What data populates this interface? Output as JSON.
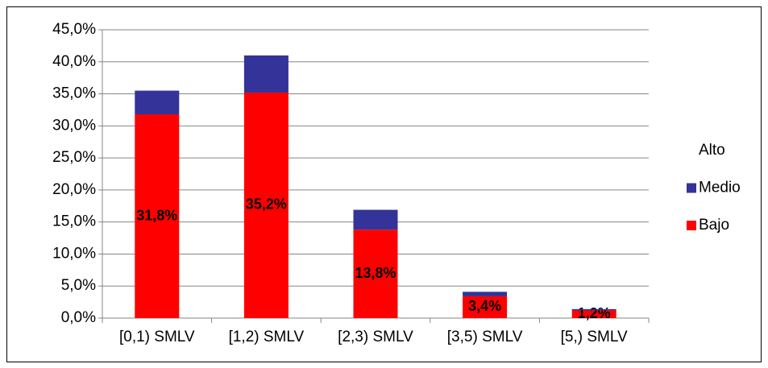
{
  "chart_data": {
    "type": "stacked_bar",
    "categories": [
      "[0,1) SMLV",
      "[1,2) SMLV",
      "[2,3) SMLV",
      "[3,5) SMLV",
      "[5,) SMLV"
    ],
    "series": [
      {
        "name": "Bajo",
        "color": "#ff0000",
        "values": [
          31.8,
          35.2,
          13.8,
          3.4,
          1.2
        ],
        "value_labels": [
          "31,8%",
          "35,2%",
          "13,8%",
          "3,4%",
          "1,2%"
        ]
      },
      {
        "name": "Medio",
        "color": "#333399",
        "values": [
          3.7,
          5.8,
          3.1,
          0.7,
          0.2
        ]
      },
      {
        "name": "Alto",
        "color": "#ffffff",
        "values": [
          0,
          0,
          0,
          0,
          0
        ]
      }
    ],
    "ylim": [
      0,
      45
    ],
    "yticks": [
      {
        "value": 0,
        "label": "0,0%"
      },
      {
        "value": 5,
        "label": "5,0%"
      },
      {
        "value": 10,
        "label": "10,0%"
      },
      {
        "value": 15,
        "label": "15,0%"
      },
      {
        "value": 20,
        "label": "20,0%"
      },
      {
        "value": 25,
        "label": "25,0%"
      },
      {
        "value": 30,
        "label": "30,0%"
      },
      {
        "value": 35,
        "label": "35,0%"
      },
      {
        "value": 40,
        "label": "40,0%"
      },
      {
        "value": 45,
        "label": "45,0%"
      }
    ],
    "grid": true,
    "legend": "right"
  }
}
